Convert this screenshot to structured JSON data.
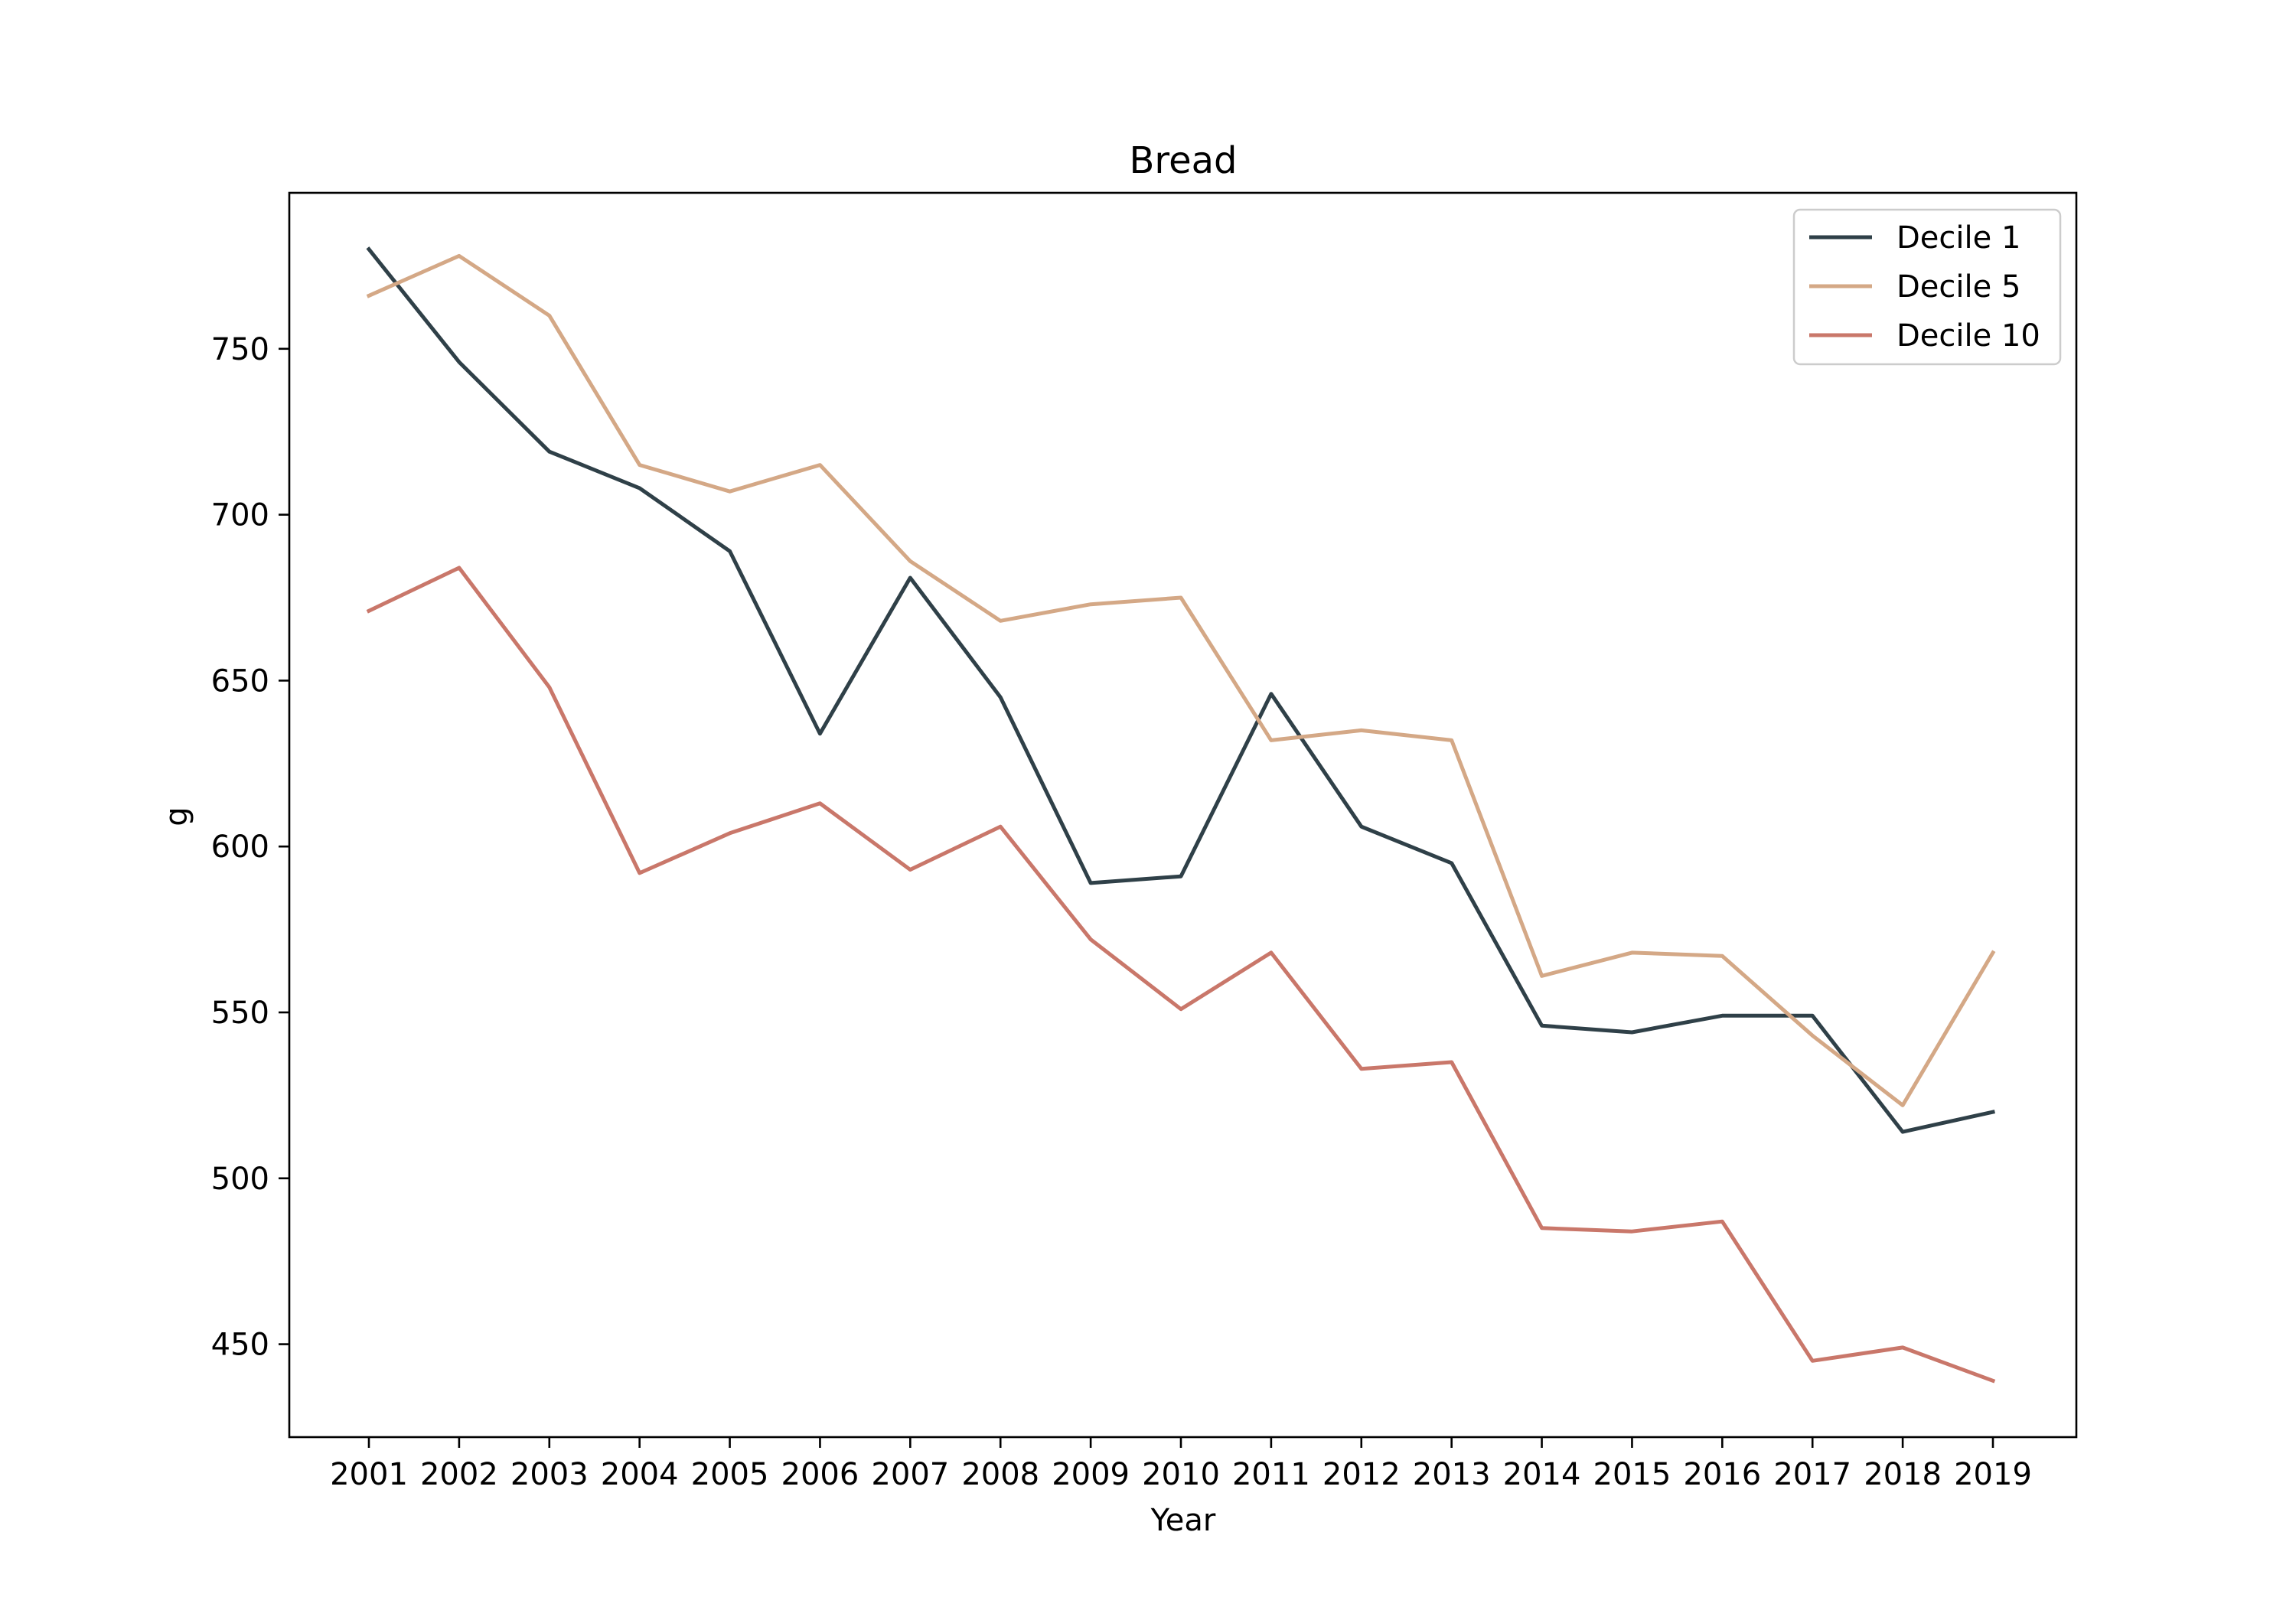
{
  "chart_data": {
    "type": "line",
    "title": "Bread",
    "xlabel": "Year",
    "ylabel": "g",
    "x": [
      "2001",
      "2002",
      "2003",
      "2004",
      "2005",
      "2006",
      "2007",
      "2008",
      "2009",
      "2010",
      "2011",
      "2012",
      "2013",
      "2014",
      "2015",
      "2016",
      "2017",
      "2018",
      "2019"
    ],
    "ylim": [
      422,
      797
    ],
    "yticks": [
      "450",
      "500",
      "550",
      "600",
      "650",
      "700",
      "750"
    ],
    "grid": false,
    "legend_position": "top-right",
    "series": [
      {
        "name": "Decile 1",
        "color": "#2f4048",
        "values": [
          780,
          746,
          719,
          708,
          689,
          634,
          681,
          645,
          589,
          591,
          646,
          606,
          595,
          546,
          544,
          549,
          549,
          514,
          520
        ]
      },
      {
        "name": "Decile 5",
        "color": "#d4a886",
        "values": [
          766,
          778,
          760,
          715,
          707,
          715,
          686,
          668,
          673,
          675,
          632,
          635,
          632,
          561,
          568,
          567,
          543,
          522,
          568
        ]
      },
      {
        "name": "Decile 10",
        "color": "#c9776a",
        "values": [
          671,
          684,
          648,
          592,
          604,
          613,
          593,
          606,
          572,
          551,
          568,
          533,
          535,
          485,
          484,
          487,
          445,
          449,
          439
        ]
      }
    ]
  }
}
